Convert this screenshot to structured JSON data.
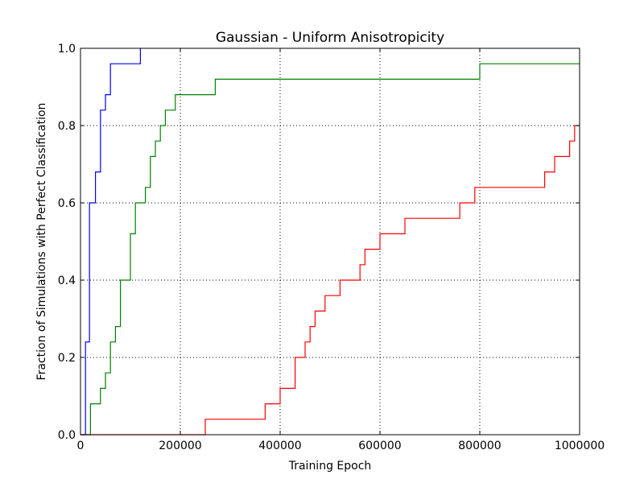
{
  "chart_data": {
    "type": "line",
    "title": "Gaussian - Uniform Anisotropicity",
    "xlabel": "Training Epoch",
    "ylabel": "Fraction of Simulations with Perfect Classification",
    "xlim": [
      0,
      1000000
    ],
    "ylim": [
      0,
      1.0
    ],
    "xticks": [
      0,
      200000,
      400000,
      600000,
      800000,
      1000000
    ],
    "xtick_labels": [
      "0",
      "200000",
      "400000",
      "600000",
      "800000",
      "1000000"
    ],
    "yticks": [
      0.0,
      0.2,
      0.4,
      0.6,
      0.8,
      1.0
    ],
    "ytick_labels": [
      "0.0",
      "0.2",
      "0.4",
      "0.6",
      "0.8",
      "1.0"
    ],
    "grid": true,
    "step": true,
    "series": [
      {
        "color": "#0000ff",
        "points": [
          [
            0,
            0
          ],
          [
            10000,
            0
          ],
          [
            10000,
            0.24
          ],
          [
            18000,
            0.24
          ],
          [
            18000,
            0.6
          ],
          [
            30000,
            0.6
          ],
          [
            30000,
            0.68
          ],
          [
            40000,
            0.68
          ],
          [
            40000,
            0.84
          ],
          [
            50000,
            0.84
          ],
          [
            50000,
            0.88
          ],
          [
            60000,
            0.88
          ],
          [
            60000,
            0.96
          ],
          [
            120000,
            0.96
          ],
          [
            120000,
            1.0
          ]
        ]
      },
      {
        "color": "#008000",
        "points": [
          [
            0,
            0
          ],
          [
            20000,
            0
          ],
          [
            20000,
            0.08
          ],
          [
            40000,
            0.08
          ],
          [
            40000,
            0.12
          ],
          [
            50000,
            0.12
          ],
          [
            50000,
            0.16
          ],
          [
            60000,
            0.16
          ],
          [
            60000,
            0.24
          ],
          [
            70000,
            0.24
          ],
          [
            70000,
            0.28
          ],
          [
            80000,
            0.28
          ],
          [
            80000,
            0.4
          ],
          [
            100000,
            0.4
          ],
          [
            100000,
            0.52
          ],
          [
            110000,
            0.52
          ],
          [
            110000,
            0.6
          ],
          [
            130000,
            0.6
          ],
          [
            130000,
            0.64
          ],
          [
            140000,
            0.64
          ],
          [
            140000,
            0.72
          ],
          [
            150000,
            0.72
          ],
          [
            150000,
            0.76
          ],
          [
            160000,
            0.76
          ],
          [
            160000,
            0.8
          ],
          [
            170000,
            0.8
          ],
          [
            170000,
            0.84
          ],
          [
            190000,
            0.84
          ],
          [
            190000,
            0.88
          ],
          [
            270000,
            0.88
          ],
          [
            270000,
            0.92
          ],
          [
            800000,
            0.92
          ],
          [
            800000,
            0.96
          ],
          [
            1000000,
            0.96
          ]
        ]
      },
      {
        "color": "#ff0000",
        "points": [
          [
            0,
            0
          ],
          [
            250000,
            0
          ],
          [
            250000,
            0.04
          ],
          [
            370000,
            0.04
          ],
          [
            370000,
            0.08
          ],
          [
            400000,
            0.08
          ],
          [
            400000,
            0.12
          ],
          [
            430000,
            0.12
          ],
          [
            430000,
            0.2
          ],
          [
            450000,
            0.2
          ],
          [
            450000,
            0.24
          ],
          [
            460000,
            0.24
          ],
          [
            460000,
            0.28
          ],
          [
            470000,
            0.28
          ],
          [
            470000,
            0.32
          ],
          [
            490000,
            0.32
          ],
          [
            490000,
            0.36
          ],
          [
            520000,
            0.36
          ],
          [
            520000,
            0.4
          ],
          [
            560000,
            0.4
          ],
          [
            560000,
            0.44
          ],
          [
            570000,
            0.44
          ],
          [
            570000,
            0.48
          ],
          [
            600000,
            0.48
          ],
          [
            600000,
            0.52
          ],
          [
            650000,
            0.52
          ],
          [
            650000,
            0.56
          ],
          [
            760000,
            0.56
          ],
          [
            760000,
            0.6
          ],
          [
            790000,
            0.6
          ],
          [
            790000,
            0.64
          ],
          [
            930000,
            0.64
          ],
          [
            930000,
            0.68
          ],
          [
            950000,
            0.68
          ],
          [
            950000,
            0.72
          ],
          [
            980000,
            0.72
          ],
          [
            980000,
            0.76
          ],
          [
            990000,
            0.76
          ],
          [
            990000,
            0.8
          ],
          [
            1000000,
            0.8
          ]
        ]
      }
    ]
  }
}
